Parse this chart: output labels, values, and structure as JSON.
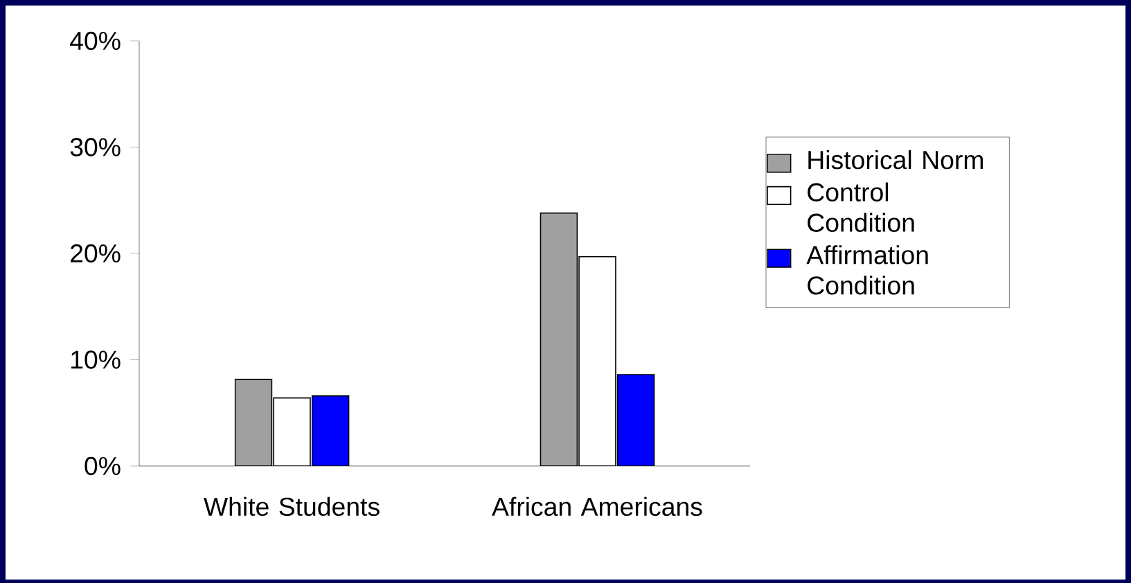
{
  "chart_data": {
    "type": "bar",
    "categories": [
      "White Students",
      "African Americans"
    ],
    "series": [
      {
        "name": "Historical Norm",
        "color": "#a0a0a0",
        "values": [
          8.15,
          23.8
        ]
      },
      {
        "name": "Control Condition",
        "color": "#ffffff",
        "values": [
          6.4,
          19.7
        ]
      },
      {
        "name": "Affirmation Condition",
        "color": "#0000ff",
        "values": [
          6.6,
          8.6
        ]
      }
    ],
    "ylim": [
      0,
      40
    ],
    "yticks": [
      {
        "value": 0,
        "label": "0%"
      },
      {
        "value": 10,
        "label": "10%"
      },
      {
        "value": 20,
        "label": "20%"
      },
      {
        "value": 30,
        "label": "30%"
      },
      {
        "value": 40,
        "label": "40%"
      }
    ],
    "legend": "right"
  }
}
